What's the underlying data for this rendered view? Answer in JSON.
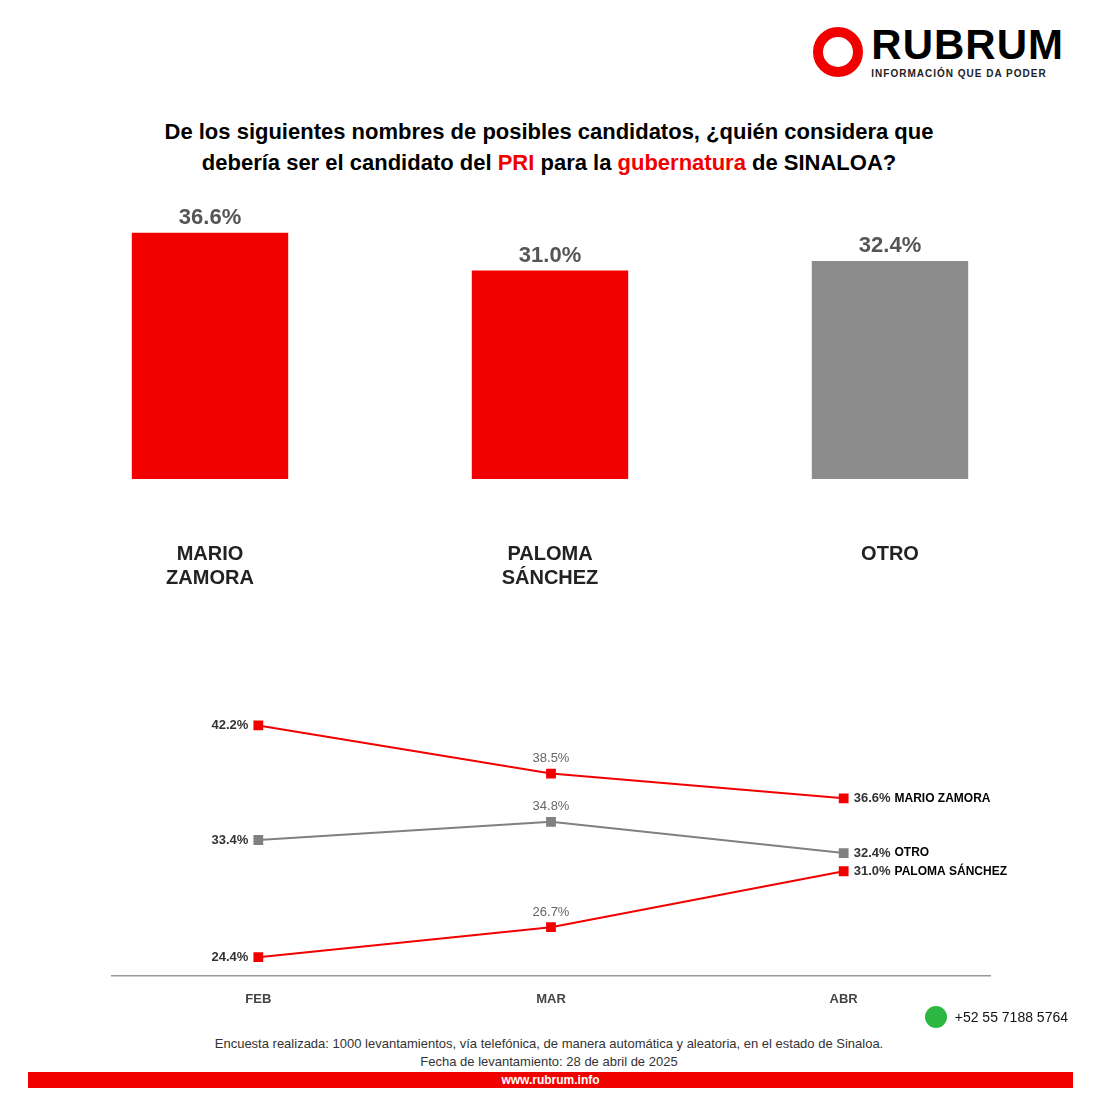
{
  "brand": {
    "name": "RUBRUM",
    "tagline": "INFORMACIÓN QUE DA PODER"
  },
  "title": [
    [
      {
        "text": "De los siguientes nombres de posibles candidatos, ¿quién considera que",
        "color": "#000000"
      }
    ],
    [
      {
        "text": "debería ser el candidato del ",
        "color": "#000000"
      },
      {
        "text": "PRI",
        "color": "#f20000"
      },
      {
        "text": " para la ",
        "color": "#000000"
      },
      {
        "text": "gubernatura",
        "color": "#f20000"
      },
      {
        "text": " de SINALOA?",
        "color": "#000000"
      }
    ]
  ],
  "chart_data": [
    {
      "type": "bar",
      "categories": [
        "MARIO ZAMORA",
        "PALOMA SÁNCHEZ",
        "OTRO"
      ],
      "values": [
        36.6,
        31.0,
        32.4
      ],
      "value_labels": [
        "36.6%",
        "31.0%",
        "32.4%"
      ],
      "colors": [
        "#f20000",
        "#f20000",
        "#8c8c8c"
      ],
      "ylim": [
        0,
        40
      ],
      "grid": false,
      "data_labels": true,
      "tick_labels": "x"
    },
    {
      "type": "line",
      "categories": [
        "FEB",
        "MAR",
        "ABR"
      ],
      "series": [
        {
          "name": "MARIO ZAMORA",
          "color": "#f20000",
          "values": [
            42.2,
            38.5,
            36.6
          ],
          "value_labels": [
            "42.2%",
            "38.5%",
            "36.6%"
          ],
          "marker": "square",
          "line_style": "solid"
        },
        {
          "name": "OTRO",
          "color": "#808080",
          "values": [
            33.4,
            34.8,
            32.4
          ],
          "value_labels": [
            "33.4%",
            "34.8%",
            "32.4%"
          ],
          "marker": "square",
          "line_style": "solid"
        },
        {
          "name": "PALOMA SÁNCHEZ",
          "color": "#f20000",
          "values": [
            24.4,
            26.7,
            31.0
          ],
          "value_labels": [
            "24.4%",
            "26.7%",
            "31.0%"
          ],
          "marker": "square",
          "line_style": "solid"
        }
      ],
      "ylim": [
        23,
        44
      ],
      "grid": false,
      "data_labels": true,
      "tick_labels": "x"
    }
  ],
  "footer": {
    "contact": "+52 55 7188 5764",
    "notes": [
      "Encuesta realizada: 1000 levantamientos, vía telefónica, de manera automática y aleatoria, en el estado de Sinaloa.",
      "Fecha de levantamiento: 28 de abril de 2025"
    ],
    "url": "www.rubrum.info"
  }
}
